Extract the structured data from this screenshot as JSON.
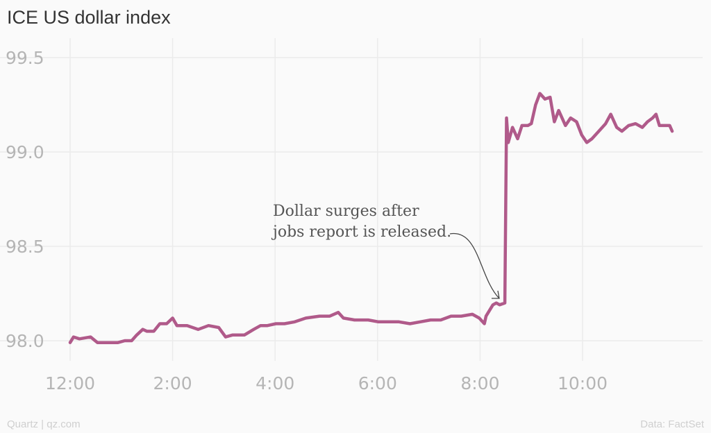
{
  "chart_data": {
    "type": "line",
    "title": "ICE US dollar index",
    "xlabel": "",
    "ylabel": "",
    "x_ticks": [
      "12:00",
      "2:00",
      "4:00",
      "6:00",
      "8:00",
      "10:00"
    ],
    "y_ticks": [
      "98.0",
      "98.5",
      "99.0",
      "99.5"
    ],
    "ylim": [
      97.95,
      99.55
    ],
    "xlim": [
      "12:00",
      "12:00 (next)"
    ],
    "grid": true,
    "line_color": "#b05a8a",
    "annotation": {
      "lines": [
        "Dollar surges after",
        "jobs report is released."
      ],
      "points_to": "8:28"
    },
    "series": [
      {
        "x": [
          "12:00",
          "12:04",
          "12:11",
          "12:24",
          "12:32",
          "12:40",
          "12:48",
          "12:56",
          "1:04",
          "1:12",
          "1:18",
          "1:25",
          "1:30",
          "1:38",
          "1:45",
          "1:53",
          "2:00",
          "2:05",
          "2:17",
          "2:30",
          "2:42",
          "2:54",
          "3:02",
          "3:10",
          "3:18",
          "3:24",
          "3:35",
          "3:43",
          "3:51",
          "4:01",
          "4:11",
          "4:23",
          "4:36",
          "4:52",
          "5:04",
          "5:14",
          "5:20",
          "5:33",
          "5:49",
          "6:01",
          "6:13",
          "6:25",
          "6:38",
          "6:50",
          "7:02",
          "7:14",
          "7:26",
          "7:38",
          "7:51",
          "7:59",
          "8:05",
          "8:07",
          "8:15",
          "8:19",
          "8:23",
          "8:29",
          "8:31",
          "8:33",
          "8:38",
          "8:44",
          "8:49",
          "8:56",
          "9:00",
          "9:05",
          "9:10",
          "9:16",
          "9:22",
          "9:27",
          "9:32",
          "9:40",
          "9:46",
          "9:53",
          "9:59",
          "10:05",
          "10:11",
          "10:19",
          "10:27",
          "10:33",
          "10:40",
          "10:46",
          "10:54",
          "11:02",
          "11:10",
          "11:16",
          "11:22",
          "11:26",
          "11:30",
          "11:42",
          "11:45"
        ],
        "y": [
          97.99,
          98.02,
          98.01,
          98.02,
          97.99,
          97.99,
          97.99,
          97.99,
          98.0,
          98.0,
          98.03,
          98.06,
          98.05,
          98.05,
          98.09,
          98.09,
          98.12,
          98.08,
          98.08,
          98.06,
          98.08,
          98.07,
          98.02,
          98.03,
          98.03,
          98.03,
          98.06,
          98.08,
          98.08,
          98.09,
          98.09,
          98.1,
          98.12,
          98.13,
          98.13,
          98.15,
          98.12,
          98.11,
          98.11,
          98.1,
          98.1,
          98.1,
          98.09,
          98.1,
          98.11,
          98.11,
          98.13,
          98.13,
          98.14,
          98.12,
          98.09,
          98.13,
          98.19,
          98.2,
          98.19,
          98.2,
          99.18,
          99.05,
          99.13,
          99.07,
          99.14,
          99.14,
          99.15,
          99.25,
          99.31,
          99.28,
          99.29,
          99.16,
          99.22,
          99.14,
          99.18,
          99.16,
          99.09,
          99.05,
          99.07,
          99.11,
          99.15,
          99.2,
          99.13,
          99.11,
          99.14,
          99.15,
          99.13,
          99.16,
          99.18,
          99.2,
          99.14,
          99.14,
          99.11
        ]
      }
    ]
  },
  "footer": {
    "left": "Quartz | qz.com",
    "right": "Data: FactSet"
  }
}
